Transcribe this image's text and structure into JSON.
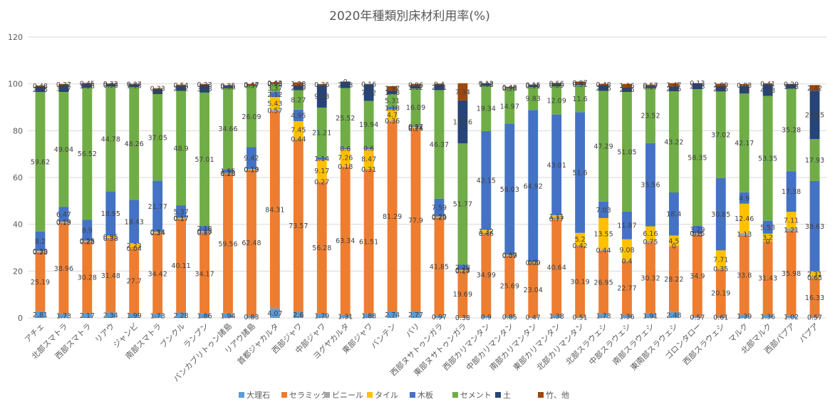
{
  "chart_data": {
    "type": "bar",
    "stacked": true,
    "title": "2020年種類別床材利用率(%)",
    "xlabel": "",
    "ylabel": "",
    "ylim": [
      0,
      120
    ],
    "yticks": [
      0,
      20,
      40,
      60,
      80,
      100,
      120
    ],
    "grid": true,
    "legend_position": "bottom",
    "categories": [
      "アチェ",
      "北部スマトラ",
      "西部スマトラ",
      "リアウ",
      "ジャンビ",
      "南部スマトラ",
      "ブンクル",
      "ランプン",
      "バンカブリトゥン諸島",
      "リアウ諸島",
      "首都ジャカルタ",
      "西部ジャワ",
      "中部ジャワ",
      "ヨグヤカルタ",
      "東部ジャワ",
      "バンテン",
      "バリ",
      "西部ヌサトゥンガラ",
      "東部ヌサトゥンガラ",
      "西部カリマンタン",
      "中部カリマンタン",
      "南部カリマンタン",
      "東部カリマンタン",
      "北部カリマンタン",
      "北部スラウェシ",
      "中部スラウェシ",
      "南部スラウェシ",
      "東南部スラウェシ",
      "ゴロンタロー",
      "西部スラウェシ",
      "マルク",
      "北部マルク",
      "西部パプア",
      "パプア"
    ],
    "series": [
      {
        "name": "大理石",
        "color": "#5b9bd5",
        "values": [
          2.81,
          1.73,
          2.17,
          2.34,
          1.99,
          1.73,
          2.28,
          1.86,
          1.94,
          0.83,
          4.07,
          2.6,
          1.79,
          1.31,
          1.88,
          2.74,
          2.77,
          0.97,
          0.38,
          0.9,
          0.85,
          0.47,
          1.38,
          0.51,
          1.73,
          1.36,
          1.91,
          2.48,
          0.57,
          0.61,
          1.39,
          1.36,
          1.02,
          0.57
        ]
      },
      {
        "name": "セラミック",
        "color": "#ed7d31",
        "values": [
          25.19,
          38.96,
          30.28,
          31.48,
          27.7,
          34.42,
          40.11,
          34.17,
          59.56,
          62.48,
          84.31,
          73.57,
          56.28,
          63.34,
          61.51,
          81.29,
          77.9,
          41.85,
          19.69,
          34.99,
          25.69,
          23.04,
          40.64,
          30.19,
          26.95,
          22.77,
          30.32,
          28.22,
          34.9,
          20.19,
          33.8,
          31.43,
          35.98,
          16.33
        ]
      },
      {
        "name": "ビニール",
        "color": "#a5a5a5",
        "values": [
          0.28,
          0.19,
          0.28,
          0.38,
          0.04,
          0.34,
          0.17,
          0.87,
          0.28,
          0.19,
          0.57,
          0.44,
          0.27,
          0.18,
          0.31,
          0.36,
          0.24,
          0.29,
          0.17,
          0.46,
          0.09,
          0.09,
          0.77,
          0.42,
          0.44,
          0.4,
          0.75,
          0,
          0.5,
          0.35,
          1.13,
          0,
          1.21,
          0.65
        ]
      },
      {
        "name": "タイル",
        "color": "#ffc000",
        "values": [
          0.39,
          0.13,
          0.25,
          0.95,
          2.23,
          0.34,
          0.17,
          0.18,
          0.23,
          0.13,
          5.43,
          7.45,
          9.17,
          7.26,
          8.47,
          4.7,
          0.74,
          0.25,
          0.28,
          1.32,
          0.37,
          0.3,
          1.11,
          5.2,
          13.55,
          9.08,
          6.16,
          4.5,
          0.15,
          7.71,
          12.46,
          3.2,
          7.11,
          2.31
        ]
      },
      {
        "name": "木板",
        "color": "#4472c4",
        "values": [
          8.2,
          6.47,
          8.9,
          18.95,
          18.43,
          21.77,
          5.37,
          2.18,
          1.55,
          9.42,
          2.12,
          4.95,
          1.14,
          0.6,
          0.6,
          1.18,
          0.27,
          7.59,
          2.28,
          42.15,
          56.03,
          64.92,
          43.01,
          51.6,
          7.03,
          11.87,
          35.56,
          18.4,
          3.29,
          30.85,
          4.9,
          5.53,
          17.38,
          38.63
        ]
      },
      {
        "name": "セメント",
        "color": "#70ad47",
        "values": [
          59.62,
          49.04,
          56.52,
          44.78,
          48.26,
          37.05,
          48.9,
          57.01,
          34.66,
          26.09,
          3.37,
          8.27,
          21.21,
          25.52,
          19.94,
          5.31,
          16.09,
          46.37,
          51.77,
          19.34,
          14.97,
          9.83,
          12.09,
          11.6,
          47.29,
          51.05,
          23.52,
          43.22,
          58.35,
          37.02,
          42.17,
          53.35,
          35.28,
          17.93
        ]
      },
      {
        "name": "土",
        "color": "#264478",
        "values": [
          2.35,
          3.07,
          1.56,
          0.98,
          1.13,
          2.2,
          2.12,
          3.38,
          0.98,
          0.37,
          0.23,
          2.09,
          9.68,
          2.78,
          7.12,
          1.48,
          1.12,
          2.41,
          18.36,
          1.03,
          0.28,
          0.91,
          0.89,
          0.51,
          2.56,
          2.06,
          0.87,
          2.05,
          2.48,
          2.25,
          3.2,
          4.98,
          1.75,
          20.65
        ]
      },
      {
        "name": "竹、他",
        "color": "#9e480e",
        "values": [
          0.48,
          0.37,
          0.45,
          0.33,
          0.27,
          0.33,
          0.54,
          0.33,
          0.25,
          0.47,
          0.63,
          1.28,
          0.36,
          0,
          0.16,
          1.97,
          0.86,
          0.4,
          7.34,
          0.12,
          0.48,
          0.15,
          0.56,
          0.97,
          0.48,
          1.36,
          0.57,
          1.47,
          0.13,
          1.09,
          0.83,
          0.41,
          0.29,
          2.42
        ]
      }
    ]
  }
}
